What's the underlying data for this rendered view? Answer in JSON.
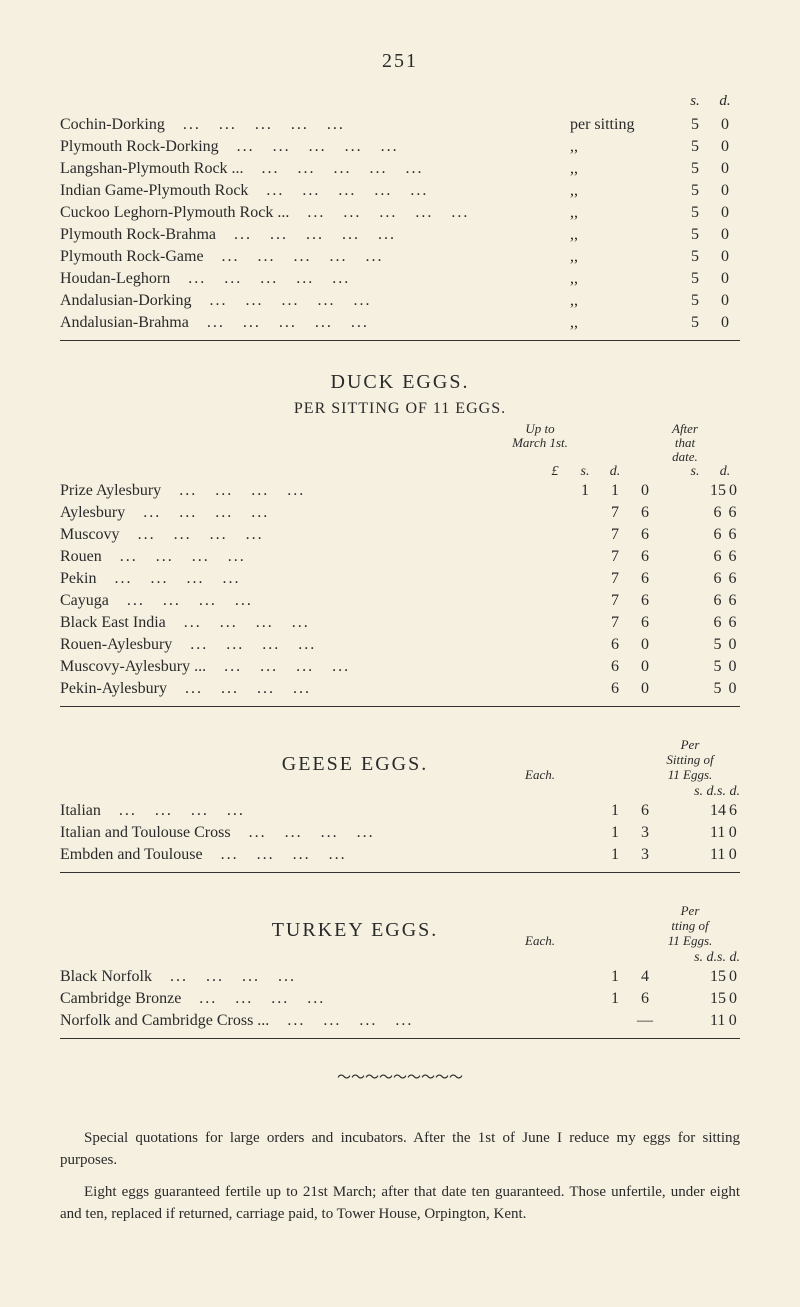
{
  "pageNumber": "251",
  "currencyHeader": {
    "s": "s.",
    "d": "d."
  },
  "perSittingLabel": "per sitting",
  "dittoMark": ",,",
  "chickens": [
    {
      "name": "Cochin-Dorking",
      "s": "5",
      "d": "0"
    },
    {
      "name": "Plymouth Rock-Dorking",
      "s": "5",
      "d": "0"
    },
    {
      "name": "Langshan-Plymouth Rock ...",
      "s": "5",
      "d": "0"
    },
    {
      "name": "Indian Game-Plymouth Rock",
      "s": "5",
      "d": "0"
    },
    {
      "name": "Cuckoo Leghorn-Plymouth Rock ...",
      "s": "5",
      "d": "0"
    },
    {
      "name": "Plymouth Rock-Brahma",
      "s": "5",
      "d": "0"
    },
    {
      "name": "Plymouth Rock-Game",
      "s": "5",
      "d": "0"
    },
    {
      "name": "Houdan-Leghorn",
      "s": "5",
      "d": "0"
    },
    {
      "name": "Andalusian-Dorking",
      "s": "5",
      "d": "0"
    },
    {
      "name": "Andalusian-Brahma",
      "s": "5",
      "d": "0"
    }
  ],
  "duckSection": {
    "title": "DUCK EGGS.",
    "subtitle": "PER SITTING OF 11 EGGS.",
    "col1Header": "Up to\nMarch 1st.",
    "col2Header": "After\nthat\ndate.",
    "subheaders": {
      "L": "£",
      "s": "s.",
      "d": "d."
    },
    "rows": [
      {
        "name": "Prize Aylesbury",
        "L1": "1",
        "s1": "1",
        "d1": "0",
        "s2": "15",
        "d2": "0"
      },
      {
        "name": "Aylesbury",
        "L1": "",
        "s1": "7",
        "d1": "6",
        "s2": "6",
        "d2": "6"
      },
      {
        "name": "Muscovy",
        "L1": "",
        "s1": "7",
        "d1": "6",
        "s2": "6",
        "d2": "6"
      },
      {
        "name": "Rouen",
        "L1": "",
        "s1": "7",
        "d1": "6",
        "s2": "6",
        "d2": "6"
      },
      {
        "name": "Pekin",
        "L1": "",
        "s1": "7",
        "d1": "6",
        "s2": "6",
        "d2": "6"
      },
      {
        "name": "Cayuga",
        "L1": "",
        "s1": "7",
        "d1": "6",
        "s2": "6",
        "d2": "6"
      },
      {
        "name": "Black East India",
        "L1": "",
        "s1": "7",
        "d1": "6",
        "s2": "6",
        "d2": "6"
      },
      {
        "name": "Rouen-Aylesbury",
        "L1": "",
        "s1": "6",
        "d1": "0",
        "s2": "5",
        "d2": "0"
      },
      {
        "name": "Muscovy-Aylesbury ...",
        "L1": "",
        "s1": "6",
        "d1": "0",
        "s2": "5",
        "d2": "0"
      },
      {
        "name": "Pekin-Aylesbury",
        "L1": "",
        "s1": "6",
        "d1": "0",
        "s2": "5",
        "d2": "0"
      }
    ]
  },
  "geeseSection": {
    "title": "GEESE EGGS.",
    "col1Header": "Each.",
    "col2Header": "Per\nSitting of\n11 Eggs.",
    "rows": [
      {
        "name": "Italian",
        "s1": "1",
        "d1": "6",
        "s2": "14",
        "d2": "6"
      },
      {
        "name": "Italian and Toulouse Cross",
        "s1": "1",
        "d1": "3",
        "s2": "11",
        "d2": "0"
      },
      {
        "name": "Embden and Toulouse",
        "s1": "1",
        "d1": "3",
        "s2": "11",
        "d2": "0"
      }
    ]
  },
  "turkeySection": {
    "title": "TURKEY EGGS.",
    "col1Header": "Each.",
    "col2Header": "Per\ntting of\n11 Eggs.",
    "rows": [
      {
        "name": "Black Norfolk",
        "s1": "1",
        "d1": "4",
        "s2": "15",
        "d2": "0"
      },
      {
        "name": "Cambridge Bronze",
        "s1": "1",
        "d1": "6",
        "s2": "15",
        "d2": "0"
      },
      {
        "name": "Norfolk and Cambridge Cross ...",
        "s1": "",
        "d1": "—",
        "s2": "11",
        "d2": "0"
      }
    ]
  },
  "footnote": {
    "p1": "Special quotations for large orders and incubators. After the 1st of June I reduce my eggs for sitting purposes.",
    "p2": "Eight eggs guaranteed fertile up to 21st March; after that date ten guaranteed. Those unfertile, under eight and ten, replaced if returned, carriage paid, to Tower House, Orpington, Kent."
  },
  "colors": {
    "background": "#f5f0e0",
    "text": "#2a2a2a"
  }
}
